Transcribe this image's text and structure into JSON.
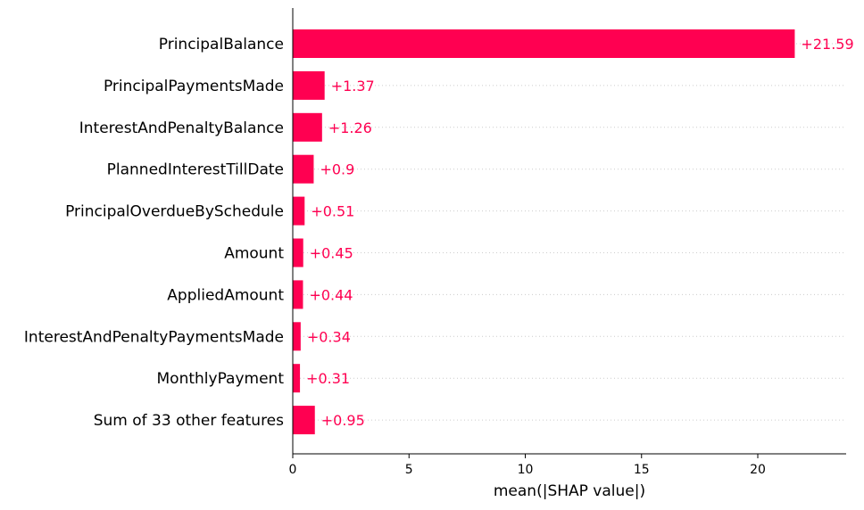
{
  "chart_data": {
    "type": "bar",
    "orientation": "horizontal",
    "categories": [
      "PrincipalBalance",
      "PrincipalPaymentsMade",
      "InterestAndPenaltyBalance",
      "PlannedInterestTillDate",
      "PrincipalOverdueBySchedule",
      "Amount",
      "AppliedAmount",
      "InterestAndPenaltyPaymentsMade",
      "MonthlyPayment",
      "Sum of 33 other features"
    ],
    "values": [
      21.59,
      1.37,
      1.26,
      0.9,
      0.51,
      0.45,
      0.44,
      0.34,
      0.31,
      0.95
    ],
    "value_labels": [
      "+21.59",
      "+1.37",
      "+1.26",
      "+0.9",
      "+0.51",
      "+0.45",
      "+0.44",
      "+0.34",
      "+0.31",
      "+0.95"
    ],
    "xlabel": "mean(|SHAP value|)",
    "ylabel": "",
    "xlim": [
      0,
      23.8
    ],
    "xticks": [
      0,
      5,
      10,
      15,
      20
    ],
    "xtick_labels": [
      "0",
      "5",
      "10",
      "15",
      "20"
    ],
    "grid": "dotted row guides",
    "bar_color": "#ff0051",
    "label_color": "#ff0051",
    "guide_color": "#cccccc",
    "axis_color": "#000000"
  }
}
